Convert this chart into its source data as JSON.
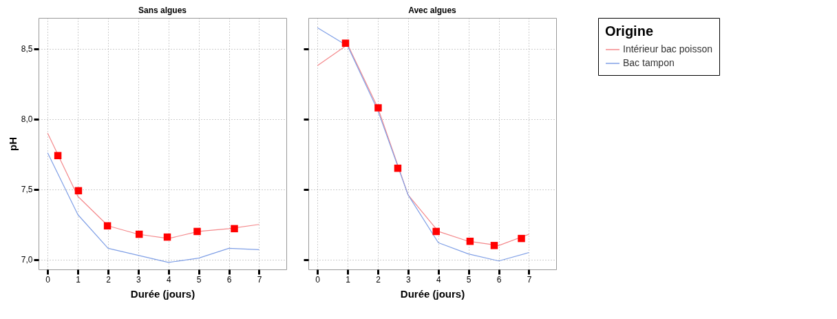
{
  "chart_data": [
    {
      "type": "line",
      "title": "Sans algues",
      "xlabel": "Durée (jours)",
      "ylabel": "pH",
      "xlim": [
        -0.3,
        7.9
      ],
      "ylim": [
        6.93,
        8.72
      ],
      "xticks": [
        0,
        1,
        2,
        3,
        4,
        5,
        6,
        7
      ],
      "yticks": [
        {
          "value": 7.0,
          "label": "7,0"
        },
        {
          "value": 7.5,
          "label": "7,5"
        },
        {
          "value": 8.0,
          "label": "8,0"
        },
        {
          "value": 8.5,
          "label": "8,5"
        }
      ],
      "grid": true,
      "line_style": "solid",
      "legend": "right",
      "legend_title": "Origine",
      "series": [
        {
          "name": "Intérieur bac poisson",
          "color": "#f4878a",
          "x": [
            0,
            1,
            2,
            3,
            4,
            5,
            6,
            7
          ],
          "values": [
            7.9,
            7.45,
            7.24,
            7.18,
            7.15,
            7.2,
            7.22,
            7.25
          ]
        },
        {
          "name": "Bac tampon",
          "color": "#7f9fe6",
          "x": [
            0,
            1,
            2,
            3,
            4,
            5,
            6,
            7
          ],
          "values": [
            7.76,
            7.32,
            7.08,
            7.03,
            6.98,
            7.01,
            7.08,
            7.07
          ]
        },
        {
          "type": "scatter",
          "marker": "square",
          "color": "#ff0000",
          "x": [
            0.34,
            1.02,
            1.98,
            3.03,
            3.96,
            4.95,
            6.18
          ],
          "values": [
            7.74,
            7.49,
            7.24,
            7.18,
            7.16,
            7.2,
            7.22
          ]
        }
      ]
    },
    {
      "type": "line",
      "title": "Avec algues",
      "xlabel": "Durée (jours)",
      "xlim": [
        -0.3,
        7.9
      ],
      "ylim": [
        6.93,
        8.72
      ],
      "xticks": [
        0,
        1,
        2,
        3,
        4,
        5,
        6,
        7
      ],
      "yticks": [
        {
          "value": 7.0,
          "label": null
        },
        {
          "value": 7.5,
          "label": null
        },
        {
          "value": 8.0,
          "label": null
        },
        {
          "value": 8.5,
          "label": null
        }
      ],
      "tick_labels": "x",
      "grid": true,
      "line_style": "solid",
      "series": [
        {
          "name": "Intérieur bac poisson",
          "color": "#f4878a",
          "x": [
            0,
            1,
            2,
            3,
            4,
            5,
            6,
            7
          ],
          "values": [
            8.38,
            8.53,
            8.08,
            7.46,
            7.2,
            7.13,
            7.1,
            7.18
          ]
        },
        {
          "name": "Bac tampon",
          "color": "#7f9fe6",
          "x": [
            0,
            1,
            2,
            3,
            4,
            5,
            6,
            7
          ],
          "values": [
            8.65,
            8.52,
            8.06,
            7.46,
            7.12,
            7.04,
            6.99,
            7.05
          ]
        },
        {
          "type": "scatter",
          "marker": "square",
          "color": "#ff0000",
          "x": [
            0.93,
            2.01,
            2.66,
            3.93,
            5.05,
            5.85,
            6.75
          ],
          "values": [
            8.54,
            8.08,
            7.65,
            7.2,
            7.13,
            7.1,
            7.15
          ]
        }
      ]
    }
  ]
}
